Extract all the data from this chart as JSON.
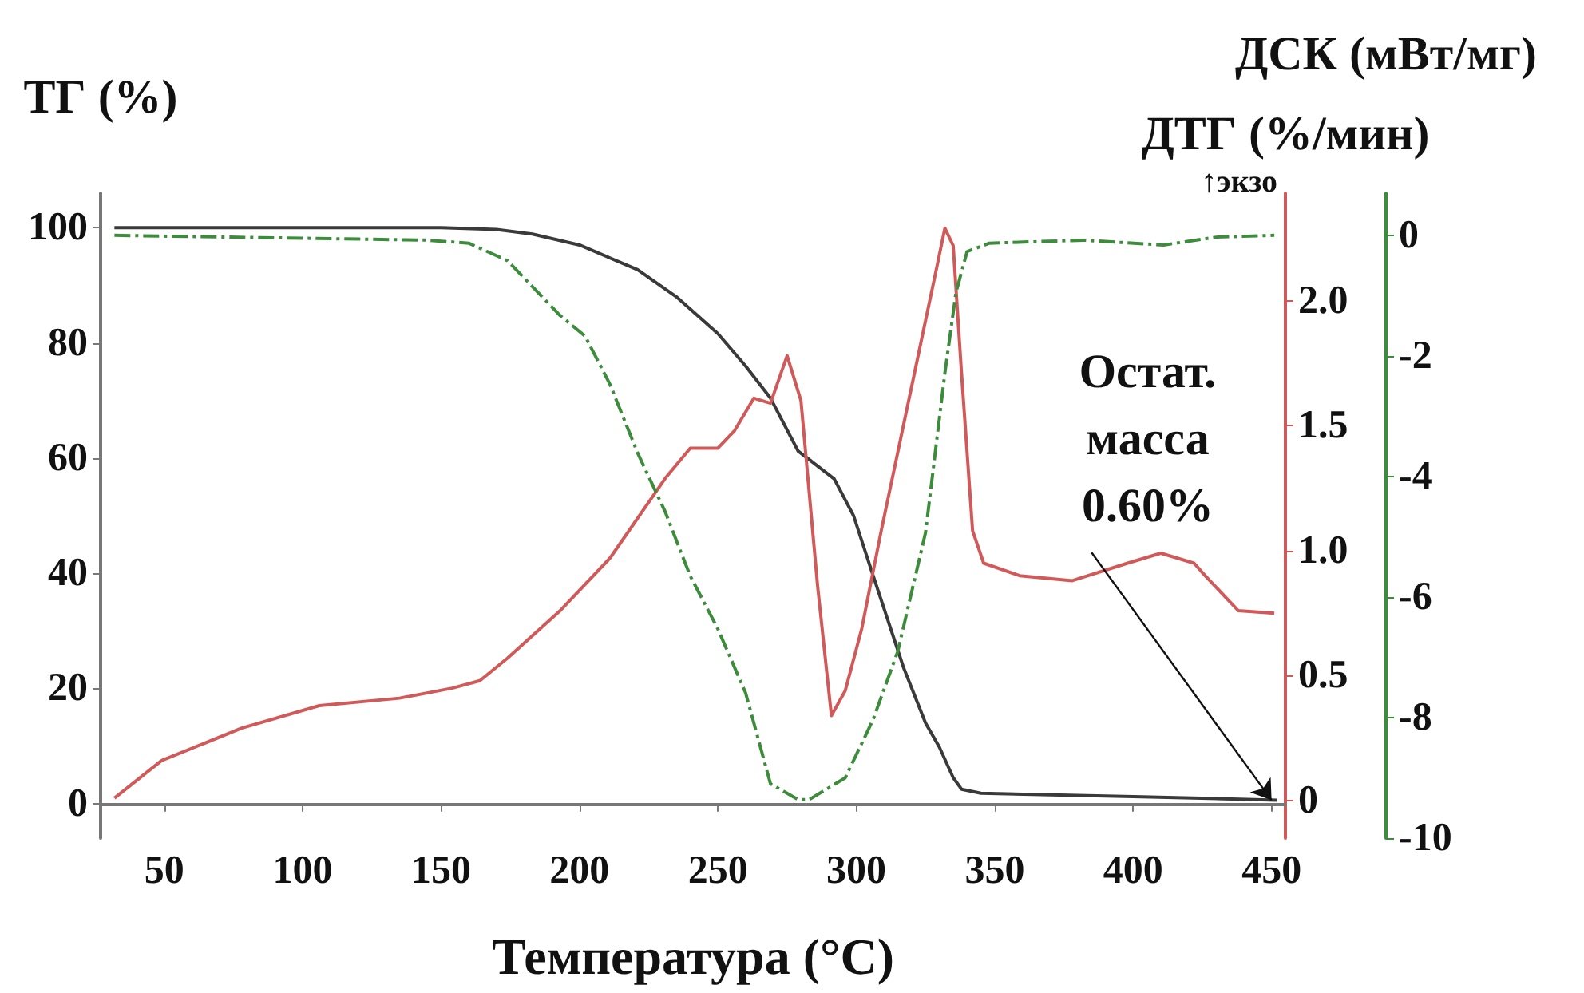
{
  "chart_data": {
    "type": "line",
    "xlabel": "Температура (°C)",
    "ylabel": "ТГ (%)",
    "y2label": "ДТГ (%/мин)",
    "y3label": "ДСК (мВт/мг)",
    "annotations": [
      {
        "text": "Остат.\nмасса\n0.60%",
        "x": 450,
        "y": 0.6
      },
      "↑экзо"
    ],
    "xlim": [
      27,
      455
    ],
    "xticks": [
      50,
      100,
      150,
      200,
      250,
      300,
      350,
      400,
      450
    ],
    "ylim": [
      -6,
      106
    ],
    "yticks": [
      0,
      20,
      40,
      60,
      80,
      100
    ],
    "y2lim": [
      -0.15,
      2.43
    ],
    "y2ticks": [
      0,
      {
        "value": 0.5,
        "label": "0.5"
      },
      {
        "value": 1,
        "label": "1.0"
      },
      {
        "value": 1.5,
        "label": "1.5"
      },
      {
        "value": 2,
        "label": "2.0"
      }
    ],
    "y3lim": [
      -10,
      0.7
    ],
    "y3ticks": [
      -10,
      -8,
      -6,
      -4,
      -2,
      0
    ],
    "series": [
      {
        "color": "#3a3a3a",
        "axis": "y",
        "line_style": "solid",
        "x": [
          32,
          100,
          150,
          170,
          183,
          200,
          221,
          235,
          250,
          260,
          269,
          279,
          285,
          292,
          299,
          306,
          317,
          325,
          330,
          335,
          338,
          345,
          400,
          452
        ],
        "values": [
          100,
          100,
          100,
          99.7,
          98.9,
          97,
          92.7,
          88,
          81.6,
          76,
          70.4,
          61.2,
          59,
          56.4,
          50,
          39.7,
          23.7,
          14,
          9.8,
          4.5,
          2.5,
          1.8,
          1.2,
          0.6
        ]
      },
      {
        "color": "#d05a5a",
        "axis": "y2",
        "line_style": "solid",
        "x": [
          32,
          49,
          78,
          106,
          135,
          154,
          164,
          174,
          193,
          211,
          231,
          240,
          250,
          256,
          263,
          269,
          275,
          280,
          286,
          291,
          296,
          302,
          309,
          321,
          329,
          332,
          335,
          338,
          342,
          346,
          359,
          378,
          398,
          410,
          422,
          426,
          438,
          451
        ],
        "values": [
          0.01,
          0.16,
          0.29,
          0.38,
          0.41,
          0.45,
          0.48,
          0.57,
          0.76,
          0.97,
          1.29,
          1.41,
          1.41,
          1.48,
          1.61,
          1.59,
          1.78,
          1.6,
          0.86,
          0.34,
          0.44,
          0.69,
          1.08,
          1.71,
          2.13,
          2.29,
          2.22,
          1.71,
          1.08,
          0.95,
          0.9,
          0.88,
          0.95,
          0.99,
          0.95,
          0.9,
          0.76,
          0.75
        ]
      },
      {
        "color": "#3c8c3c",
        "axis": "y3",
        "line_style": "dashed",
        "x": [
          32,
          145,
          160,
          174,
          193,
          202,
          211,
          221,
          231,
          240,
          250,
          260,
          269,
          279,
          283,
          296,
          306,
          315,
          325,
          332,
          336,
          340,
          348,
          382,
          411,
          430,
          451
        ],
        "values": [
          0,
          -0.08,
          -0.13,
          -0.42,
          -1.33,
          -1.67,
          -2.47,
          -3.61,
          -4.59,
          -5.65,
          -6.53,
          -7.59,
          -9.1,
          -9.36,
          -9.36,
          -9.0,
          -8.04,
          -6.9,
          -4.93,
          -2.28,
          -0.95,
          -0.27,
          -0.13,
          -0.08,
          -0.16,
          -0.03,
          0
        ]
      }
    ]
  }
}
